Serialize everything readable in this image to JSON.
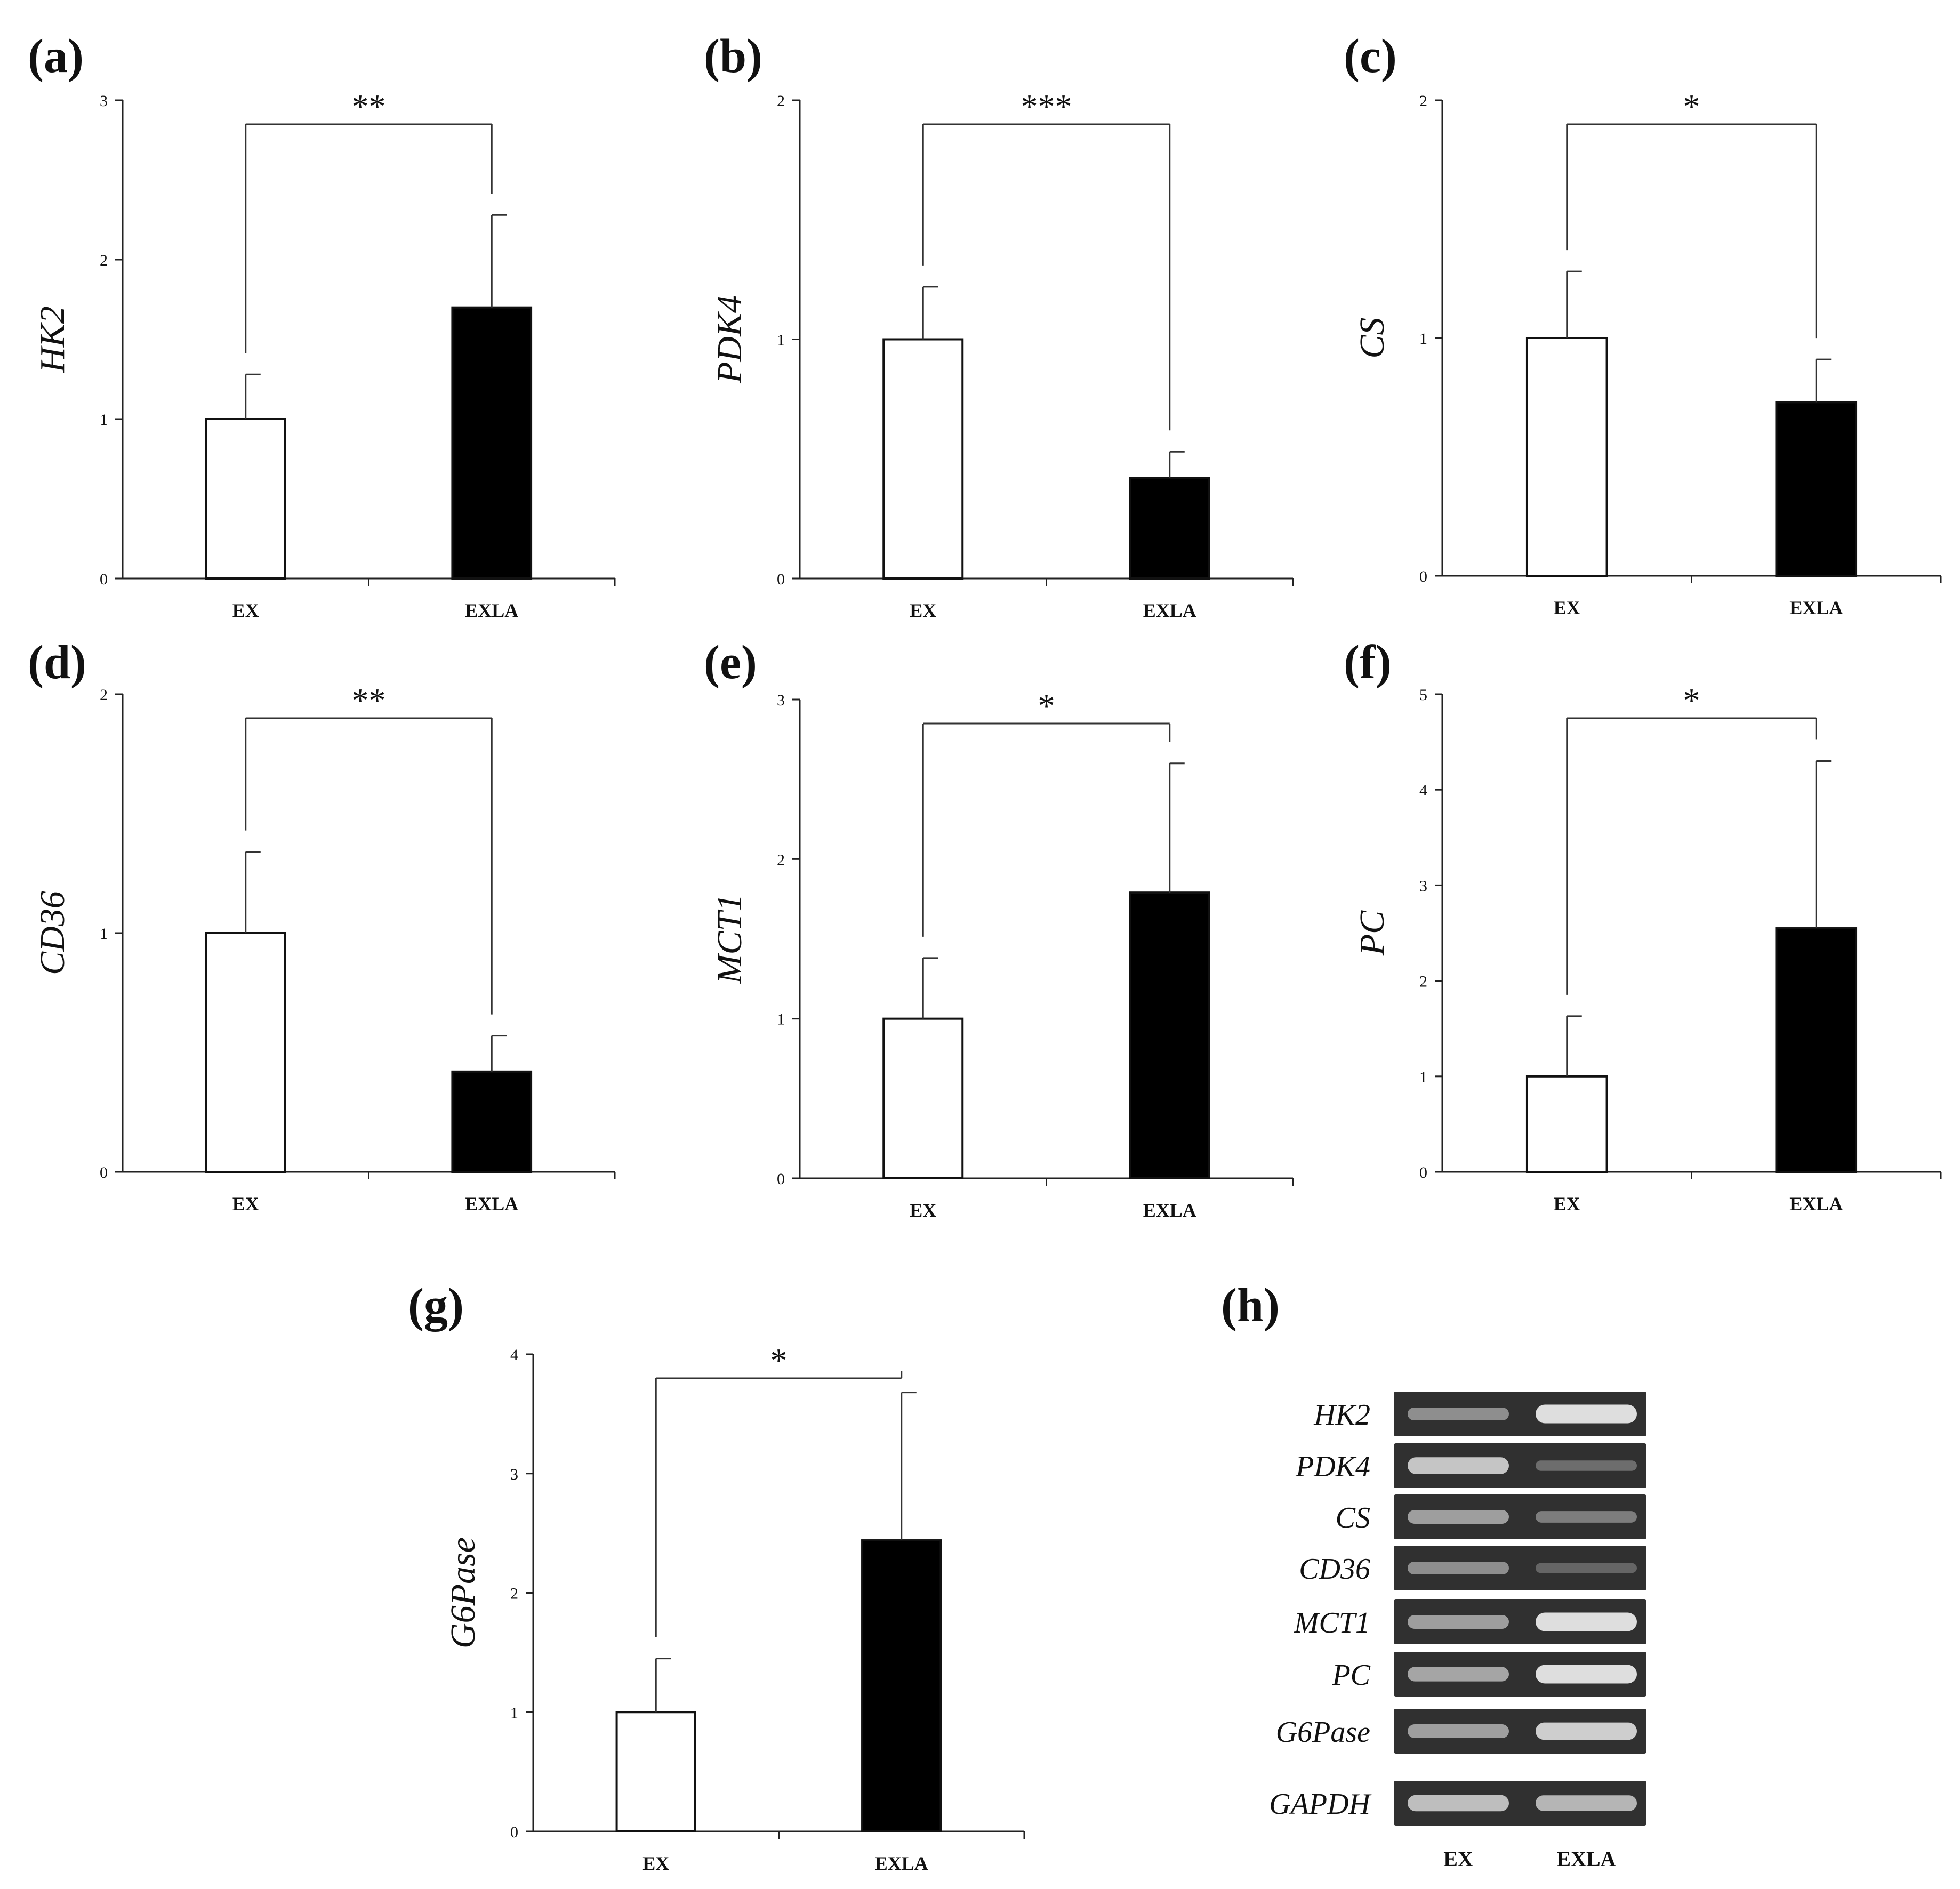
{
  "chart_data": [
    {
      "panel": "(a)",
      "type": "bar",
      "title": "",
      "xlabel": "",
      "ylabel": "HK2",
      "categories": [
        "EX",
        "EXLA"
      ],
      "values": [
        1.0,
        1.7
      ],
      "errors": [
        0.28,
        0.58
      ],
      "bar_colors": [
        "#ffffff",
        "#000000"
      ],
      "ylim": [
        0,
        3
      ],
      "yticks": [
        "0",
        "1",
        "2",
        "3"
      ],
      "significance": "**",
      "grid": false
    },
    {
      "panel": "(b)",
      "type": "bar",
      "title": "",
      "xlabel": "",
      "ylabel": "PDK4",
      "categories": [
        "EX",
        "EXLA"
      ],
      "values": [
        1.0,
        0.42
      ],
      "errors": [
        0.22,
        0.11
      ],
      "bar_colors": [
        "#ffffff",
        "#000000"
      ],
      "ylim": [
        0,
        2
      ],
      "yticks": [
        "0",
        "1",
        "2"
      ],
      "significance": "***",
      "grid": false
    },
    {
      "panel": "(c)",
      "type": "bar",
      "title": "",
      "xlabel": "",
      "ylabel": "CS",
      "categories": [
        "EX",
        "EXLA"
      ],
      "values": [
        1.0,
        0.73
      ],
      "errors": [
        0.28,
        0.18
      ],
      "bar_colors": [
        "#ffffff",
        "#000000"
      ],
      "ylim": [
        0,
        2
      ],
      "yticks": [
        "0",
        "1",
        "2"
      ],
      "significance": "*",
      "grid": false
    },
    {
      "panel": "(d)",
      "type": "bar",
      "title": "",
      "xlabel": "",
      "ylabel": "CD36",
      "categories": [
        "EX",
        "EXLA"
      ],
      "values": [
        1.0,
        0.42
      ],
      "errors": [
        0.34,
        0.15
      ],
      "bar_colors": [
        "#ffffff",
        "#000000"
      ],
      "ylim": [
        0,
        2
      ],
      "yticks": [
        "0",
        "1",
        "2"
      ],
      "significance": "**",
      "grid": false
    },
    {
      "panel": "(e)",
      "type": "bar",
      "title": "",
      "xlabel": "",
      "ylabel": "MCT1",
      "categories": [
        "EX",
        "EXLA"
      ],
      "values": [
        1.0,
        1.79
      ],
      "errors": [
        0.38,
        0.81
      ],
      "bar_colors": [
        "#ffffff",
        "#000000"
      ],
      "ylim": [
        0,
        3
      ],
      "yticks": [
        "0",
        "1",
        "2",
        "3"
      ],
      "significance": "*",
      "grid": false
    },
    {
      "panel": "(f)",
      "type": "bar",
      "title": "",
      "xlabel": "",
      "ylabel": "PC",
      "categories": [
        "EX",
        "EXLA"
      ],
      "values": [
        1.0,
        2.55
      ],
      "errors": [
        0.63,
        1.75
      ],
      "bar_colors": [
        "#ffffff",
        "#000000"
      ],
      "ylim": [
        0,
        5
      ],
      "yticks": [
        "0",
        "1",
        "2",
        "3",
        "4",
        "5"
      ],
      "significance": "*",
      "grid": false
    },
    {
      "panel": "(g)",
      "type": "bar",
      "title": "",
      "xlabel": "",
      "ylabel": "G6Pase",
      "categories": [
        "EX",
        "EXLA"
      ],
      "values": [
        1.0,
        2.44
      ],
      "errors": [
        0.45,
        1.24
      ],
      "bar_colors": [
        "#ffffff",
        "#000000"
      ],
      "ylim": [
        0,
        4
      ],
      "yticks": [
        "0",
        "1",
        "2",
        "3",
        "4"
      ],
      "significance": "*",
      "grid": false
    }
  ],
  "gel": {
    "panel": "(h)",
    "lanes": [
      "EX",
      "EXLA"
    ],
    "rows": [
      {
        "gene": "HK2",
        "intensity": [
          0.45,
          0.95
        ]
      },
      {
        "gene": "PDK4",
        "intensity": [
          0.8,
          0.25
        ]
      },
      {
        "gene": "CS",
        "intensity": [
          0.55,
          0.35
        ]
      },
      {
        "gene": "CD36",
        "intensity": [
          0.45,
          0.2
        ]
      },
      {
        "gene": "MCT1",
        "intensity": [
          0.55,
          0.95
        ]
      },
      {
        "gene": "PC",
        "intensity": [
          0.6,
          0.95
        ]
      },
      {
        "gene": "G6Pase",
        "intensity": [
          0.55,
          0.85
        ]
      },
      {
        "gene": "GAPDH",
        "intensity": [
          0.75,
          0.7
        ]
      }
    ]
  }
}
